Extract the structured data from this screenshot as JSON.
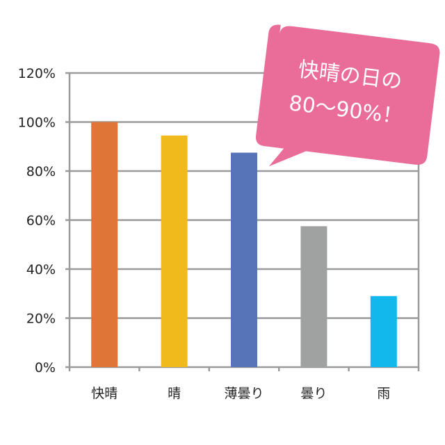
{
  "chart_data": {
    "type": "bar",
    "categories": [
      "快晴",
      "晴",
      "薄曇り",
      "曇り",
      "雨"
    ],
    "values": [
      100,
      94.5,
      87.5,
      57.5,
      29
    ],
    "colors": [
      "#e07538",
      "#f0b91c",
      "#5874b8",
      "#a0a2a1",
      "#12b8ec"
    ],
    "yticks": [
      "0%",
      "20%",
      "40%",
      "60%",
      "80%",
      "100%",
      "120%"
    ],
    "ylim": [
      0,
      120
    ],
    "grid": true,
    "title": "",
    "xlabel": "",
    "ylabel": "",
    "annotation": {
      "line1": "快晴の日の",
      "line2": "80～90%！",
      "color": "#ea6d99"
    }
  }
}
